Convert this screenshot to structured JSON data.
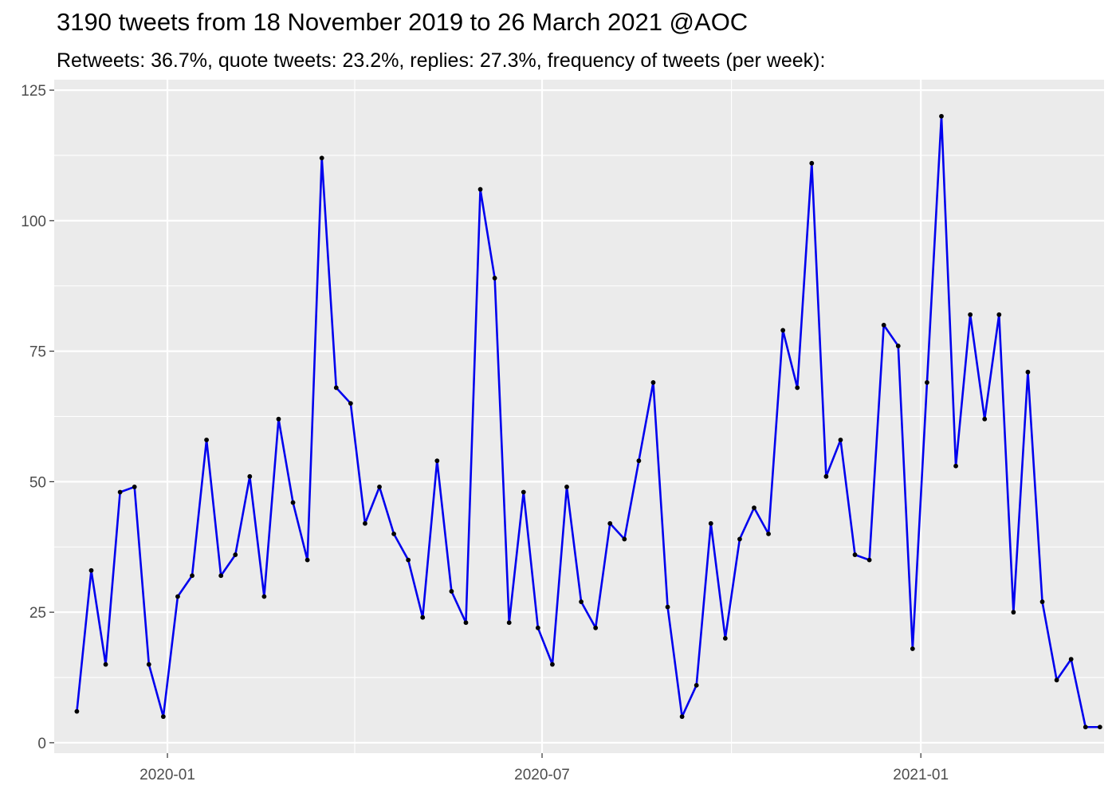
{
  "chart_data": {
    "type": "line",
    "title": "3190 tweets from 18 November 2019 to 26 March 2021 @AOC",
    "subtitle": "Retweets: 36.7%, quote tweets: 23.2%, replies: 27.3%, frequency of tweets (per week):",
    "xlabel": "",
    "ylabel": "",
    "ylim": [
      -2,
      127
    ],
    "y_ticks": [
      0,
      25,
      50,
      75,
      100,
      125
    ],
    "x_range": [
      "2019-11-07",
      "2021-03-31"
    ],
    "x_ticks": [
      {
        "date": "2020-01-01",
        "label": "2020-01"
      },
      {
        "date": "2020-07-01",
        "label": "2020-07"
      },
      {
        "date": "2021-01-01",
        "label": "2021-01"
      }
    ],
    "x_minor_ticks": [
      "2019-10-01",
      "2020-04-01",
      "2020-10-01",
      "2021-04-01"
    ],
    "grid": true,
    "background": "#ebebeb",
    "line_color": "#0000ee",
    "point_color": "#000000",
    "series": [
      {
        "x": [
          "2019-11-18",
          "2019-11-25",
          "2019-12-02",
          "2019-12-09",
          "2019-12-16",
          "2019-12-23",
          "2019-12-30",
          "2020-01-06",
          "2020-01-13",
          "2020-01-20",
          "2020-01-27",
          "2020-02-03",
          "2020-02-10",
          "2020-02-17",
          "2020-02-24",
          "2020-03-02",
          "2020-03-09",
          "2020-03-16",
          "2020-03-23",
          "2020-03-30",
          "2020-04-06",
          "2020-04-13",
          "2020-04-20",
          "2020-04-27",
          "2020-05-04",
          "2020-05-11",
          "2020-05-18",
          "2020-05-25",
          "2020-06-01",
          "2020-06-08",
          "2020-06-15",
          "2020-06-22",
          "2020-06-29",
          "2020-07-06",
          "2020-07-13",
          "2020-07-20",
          "2020-07-27",
          "2020-08-03",
          "2020-08-10",
          "2020-08-17",
          "2020-08-24",
          "2020-08-31",
          "2020-09-07",
          "2020-09-14",
          "2020-09-21",
          "2020-09-28",
          "2020-10-05",
          "2020-10-12",
          "2020-10-19",
          "2020-10-26",
          "2020-11-02",
          "2020-11-09",
          "2020-11-16",
          "2020-11-23",
          "2020-11-30",
          "2020-12-07",
          "2020-12-14",
          "2020-12-21",
          "2020-12-28",
          "2021-01-04",
          "2021-01-11",
          "2021-01-18",
          "2021-01-25",
          "2021-02-01",
          "2021-02-08",
          "2021-02-15",
          "2021-02-22",
          "2021-03-01",
          "2021-03-08",
          "2021-03-15",
          "2021-03-22",
          "2021-03-29"
        ],
        "values": [
          6,
          33,
          15,
          48,
          49,
          15,
          5,
          28,
          32,
          58,
          32,
          36,
          51,
          28,
          62,
          46,
          35,
          112,
          68,
          65,
          42,
          49,
          40,
          35,
          24,
          54,
          29,
          23,
          106,
          89,
          23,
          48,
          22,
          15,
          49,
          27,
          22,
          42,
          39,
          54,
          69,
          26,
          5,
          11,
          42,
          20,
          39,
          45,
          40,
          79,
          68,
          111,
          51,
          58,
          36,
          35,
          80,
          76,
          18,
          69,
          120,
          53,
          82,
          62,
          82,
          25,
          71,
          27,
          12,
          16,
          3,
          3
        ]
      }
    ]
  }
}
